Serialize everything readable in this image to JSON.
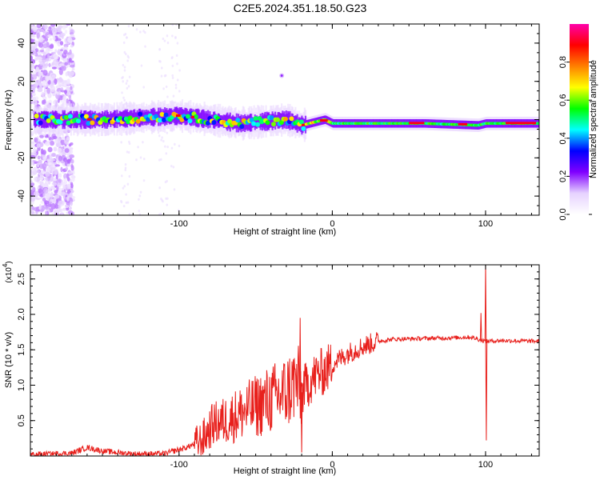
{
  "title": "C2E5.2024.351.18.50.G23",
  "chart_data": [
    {
      "type": "heatmap",
      "xlabel": "Height of straight line (km)",
      "ylabel": "Frequency (Hz)",
      "xlim": [
        -197,
        135
      ],
      "ylim": [
        -50,
        50
      ],
      "x_ticks": [
        -100,
        0,
        100
      ],
      "y_ticks": [
        -40,
        -20,
        0,
        20,
        40
      ],
      "colorbar": {
        "label": "Normalized spectral amplitude",
        "range": [
          0,
          1
        ],
        "ticks": [
          "0.0",
          "0.2",
          "0.4",
          "0.6",
          "0.8"
        ],
        "colors": [
          "#ffffff",
          "#e6d2ff",
          "#8000ff",
          "#0000ff",
          "#00ffff",
          "#00ff00",
          "#ffff00",
          "#ff8000",
          "#ff0000",
          "#ff00aa"
        ]
      },
      "ridge": [
        {
          "x": -190,
          "f": 0
        },
        {
          "x": -150,
          "f": 0
        },
        {
          "x": -100,
          "f": 2
        },
        {
          "x": -60,
          "f": -2
        },
        {
          "x": -30,
          "f": 0
        },
        {
          "x": -20,
          "f": -3
        },
        {
          "x": -5,
          "f": 0
        },
        {
          "x": 0,
          "f": -2
        },
        {
          "x": 60,
          "f": -2
        },
        {
          "x": 95,
          "f": -3
        },
        {
          "x": 100,
          "f": -2
        },
        {
          "x": 135,
          "f": -2
        }
      ]
    },
    {
      "type": "line",
      "xlabel": "Height of straight line (km)",
      "ylabel": "SNR (10 * v/v)",
      "y_multiplier": "(x10",
      "y_multiplier_exp": "4",
      "xlim": [
        -197,
        135
      ],
      "ylim": [
        0,
        2.7
      ],
      "x_ticks": [
        -100,
        0,
        100
      ],
      "y_ticks": [
        "0.5",
        "1.0",
        "1.5",
        "2.0",
        "2.5"
      ],
      "color": "#e8201c",
      "series": [
        {
          "values": [
            [
              -197,
              0.02
            ],
            [
              -170,
              0.04
            ],
            [
              -160,
              0.12
            ],
            [
              -150,
              0.07
            ],
            [
              -130,
              0.03
            ],
            [
              -110,
              0.03
            ],
            [
              -95,
              0.12
            ],
            [
              -85,
              0.22
            ],
            [
              -78,
              0.45
            ],
            [
              -70,
              0.5
            ],
            [
              -60,
              0.6
            ],
            [
              -50,
              0.7
            ],
            [
              -40,
              0.8
            ],
            [
              -30,
              0.9
            ],
            [
              -24,
              1.05
            ],
            [
              -20,
              0.9
            ],
            [
              -15,
              1.05
            ],
            [
              -10,
              1.15
            ],
            [
              -5,
              1.2
            ],
            [
              0,
              1.3
            ],
            [
              10,
              1.45
            ],
            [
              20,
              1.55
            ],
            [
              30,
              1.62
            ],
            [
              40,
              1.65
            ],
            [
              60,
              1.66
            ],
            [
              80,
              1.67
            ],
            [
              90,
              1.68
            ],
            [
              100,
              1.62
            ],
            [
              110,
              1.63
            ],
            [
              135,
              1.62
            ]
          ]
        }
      ],
      "spikes": [
        {
          "x": -21,
          "y": 1.95
        },
        {
          "x": -20,
          "y": 0.05
        },
        {
          "x": 97,
          "y": 2.02
        },
        {
          "x": 100,
          "y": 2.7
        },
        {
          "x": 100.5,
          "y": 0.22
        }
      ]
    }
  ]
}
